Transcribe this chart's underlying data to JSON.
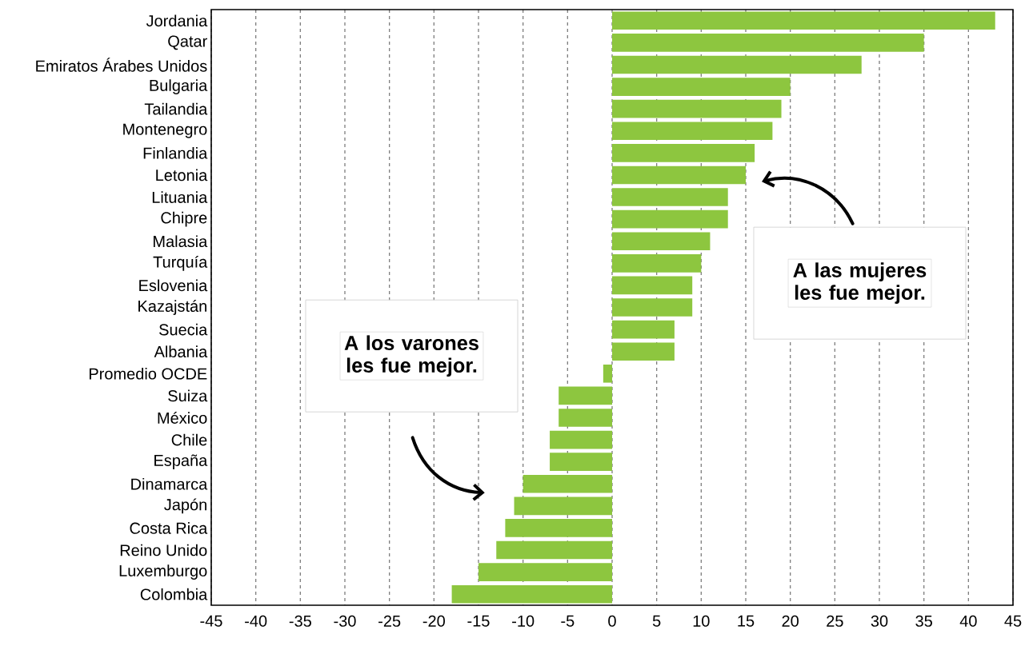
{
  "chart_data": {
    "type": "bar",
    "orientation": "horizontal",
    "categories": [
      "Jordania",
      "Qatar",
      "Emiratos Árabes Unidos",
      "Bulgaria",
      "Tailandia",
      "Montenegro",
      "Finlandia",
      "Letonia",
      "Lituania",
      "Chipre",
      "Malasia",
      "Turquía",
      "Eslovenia",
      "Kazajstán",
      "Suecia",
      "Albania",
      "Promedio OCDE",
      "Suiza",
      "México",
      "Chile",
      "España",
      "Dinamarca",
      "Japón",
      "Costa Rica",
      "Reino Unido",
      "Luxemburgo",
      "Colombia"
    ],
    "values": [
      43,
      35,
      28,
      20,
      19,
      18,
      16,
      15,
      13,
      13,
      11,
      10,
      9,
      9,
      7,
      7,
      -1,
      -6,
      -6,
      -7,
      -7,
      -10,
      -11,
      -12,
      -13,
      -15,
      -18
    ],
    "color": "#8dc63f",
    "xlim": [
      -45,
      45
    ],
    "xticks": [
      -45,
      -40,
      -35,
      -30,
      -25,
      -20,
      -15,
      -10,
      -5,
      0,
      5,
      10,
      15,
      20,
      25,
      30,
      35,
      40,
      45
    ],
    "grid": "x",
    "annotations": [
      "A los varones les fue mejor.",
      "A las mujeres les fue mejor."
    ]
  }
}
